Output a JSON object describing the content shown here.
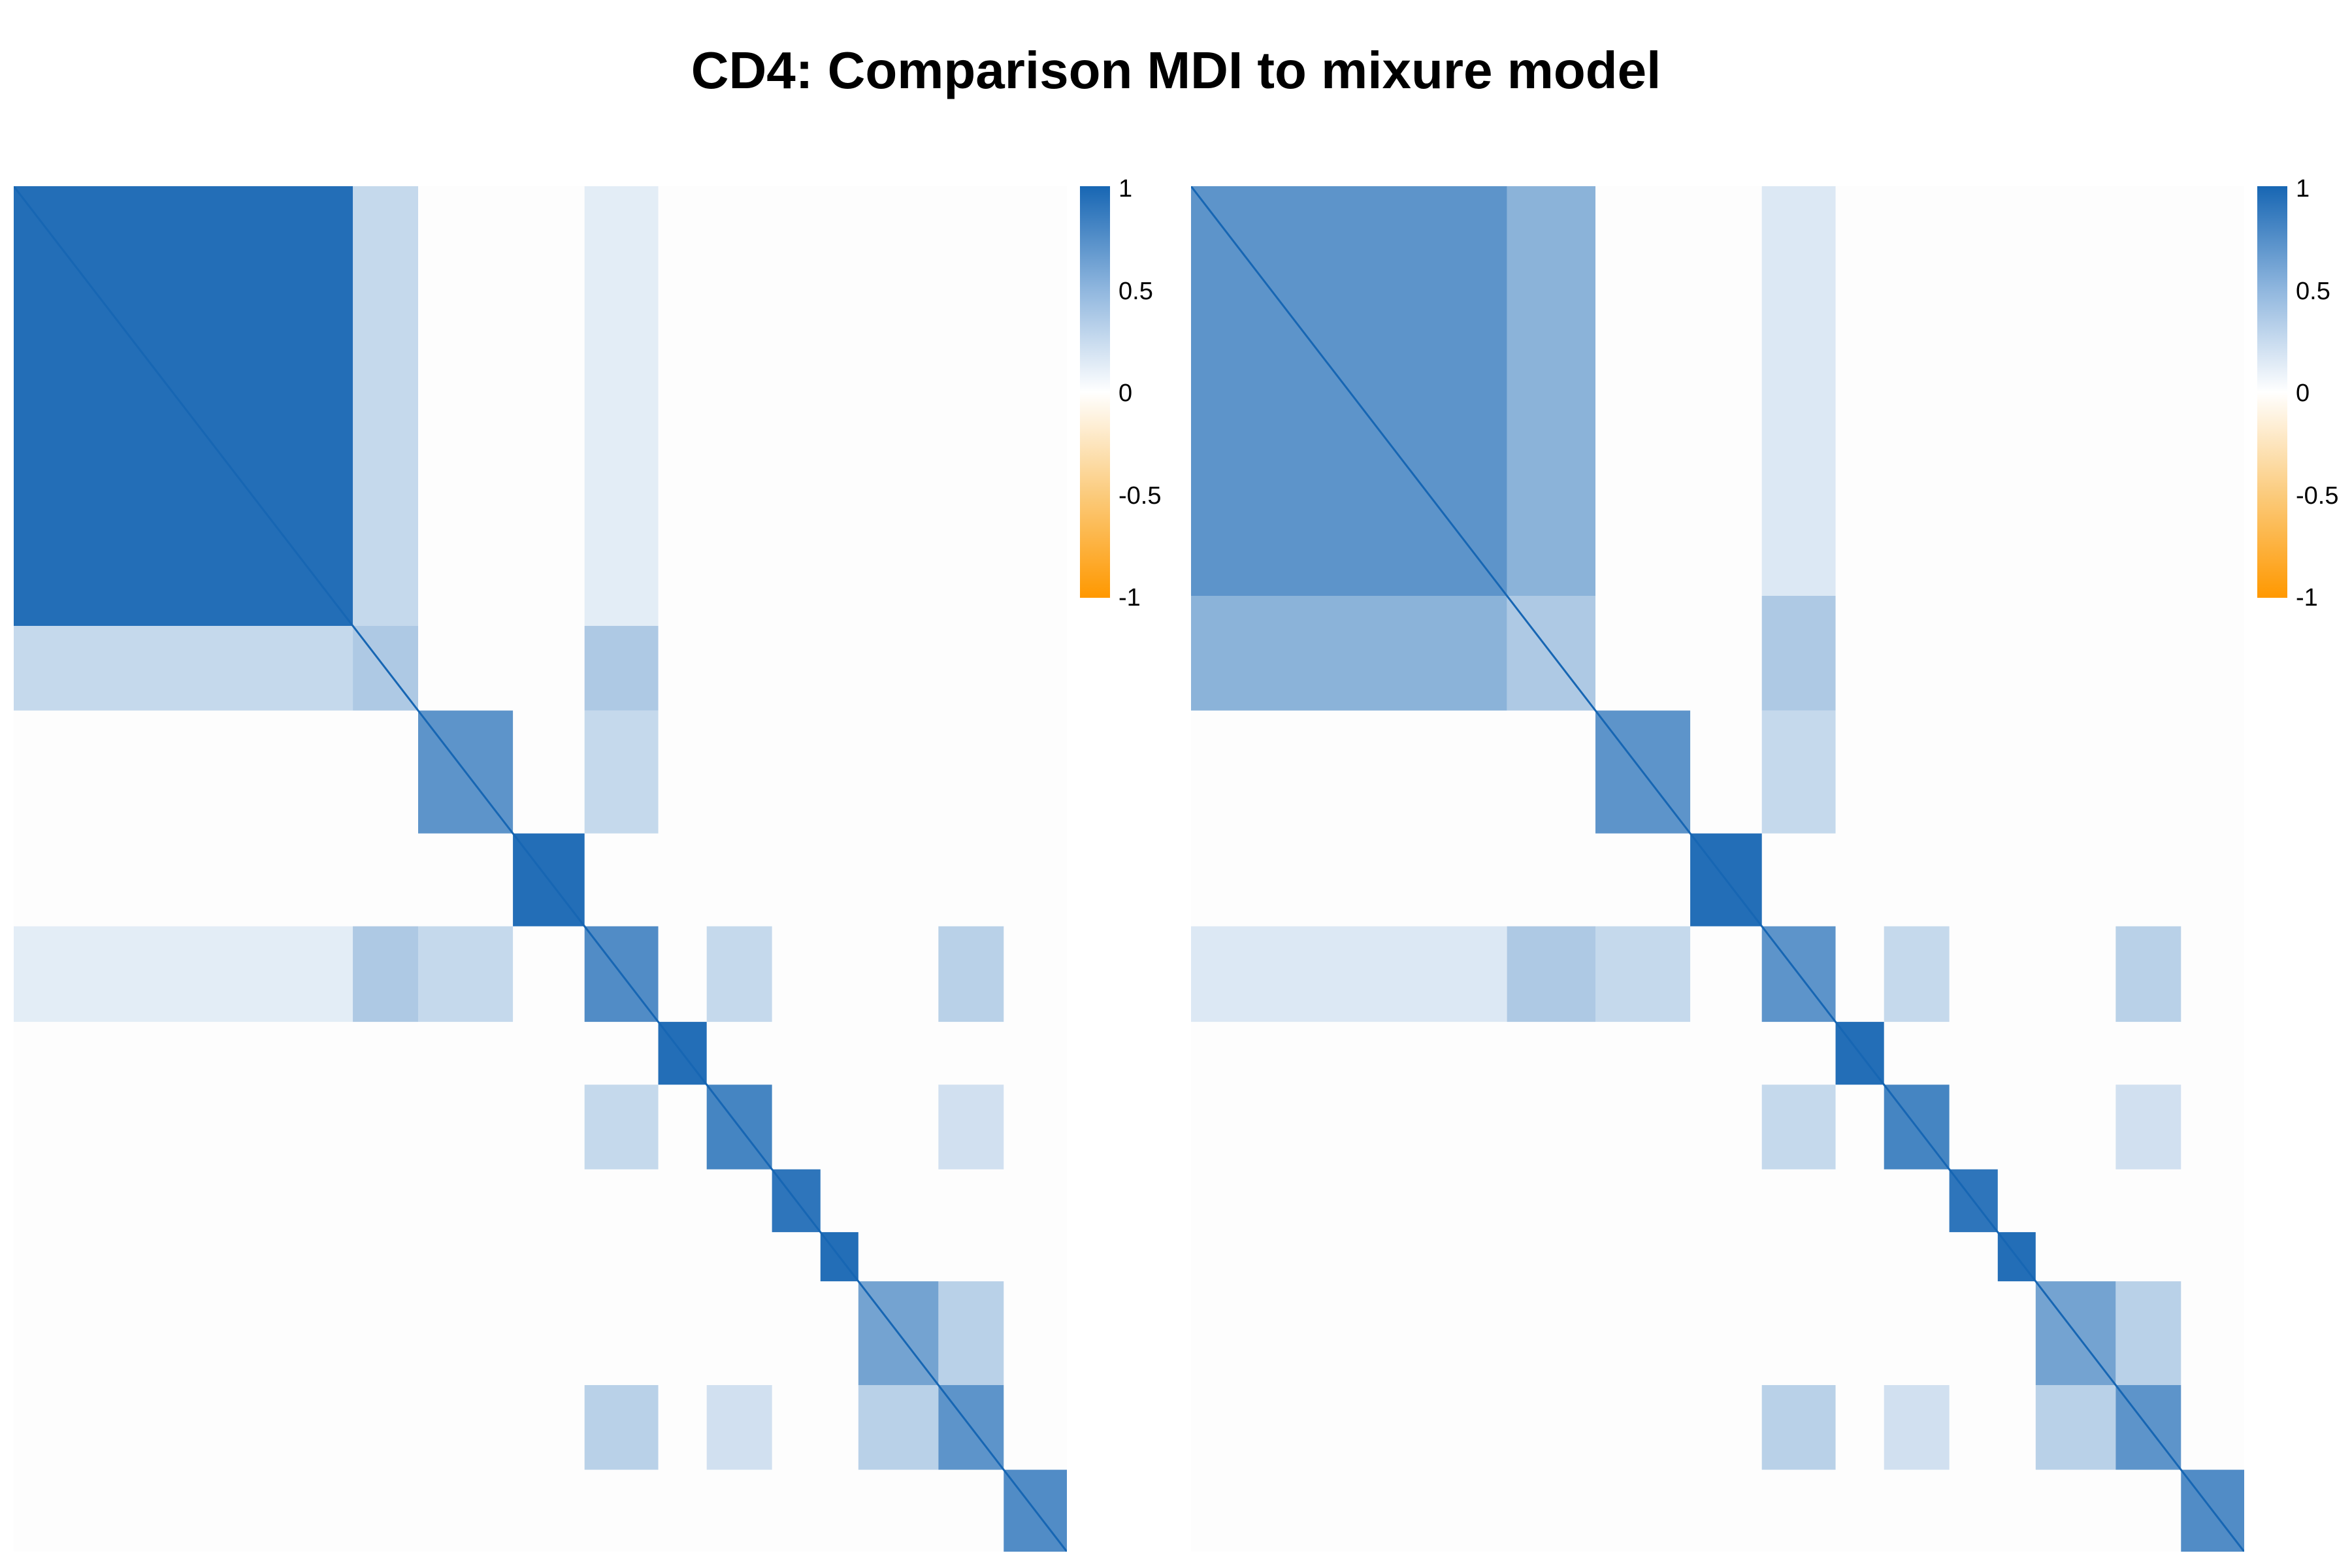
{
  "title": "CD4: Comparison MDI to mixure model",
  "colors": {
    "positive": "#1766b3",
    "zero": "#ffffff",
    "negative": "#ff9800"
  },
  "chart_data": [
    {
      "type": "heatmap",
      "title": "",
      "value_range": [
        -1,
        1
      ],
      "legend": {
        "position": "right",
        "ticks": [
          "1",
          "0.5",
          "0",
          "-0.5",
          "-1"
        ]
      },
      "matrix_size": 1000,
      "clusters": [
        {
          "start": 0,
          "end": 322,
          "within": 0.95
        },
        {
          "start": 322,
          "end": 384,
          "within": 0.35
        },
        {
          "start": 384,
          "end": 474,
          "within": 0.7
        },
        {
          "start": 474,
          "end": 542,
          "within": 0.95
        },
        {
          "start": 542,
          "end": 612,
          "within": 0.75
        },
        {
          "start": 612,
          "end": 658,
          "within": 0.95
        },
        {
          "start": 658,
          "end": 720,
          "within": 0.8
        },
        {
          "start": 720,
          "end": 766,
          "within": 0.9
        },
        {
          "start": 766,
          "end": 802,
          "within": 0.95
        },
        {
          "start": 802,
          "end": 878,
          "within": 0.6
        },
        {
          "start": 878,
          "end": 940,
          "within": 0.7
        },
        {
          "start": 940,
          "end": 1000,
          "within": 0.75
        }
      ],
      "off_diagonal": [
        {
          "rows": [
            0,
            322
          ],
          "cols": [
            322,
            384
          ],
          "value": 0.25
        },
        {
          "rows": [
            0,
            322
          ],
          "cols": [
            542,
            612
          ],
          "value": 0.12
        },
        {
          "rows": [
            322,
            384
          ],
          "cols": [
            542,
            612
          ],
          "value": 0.35
        },
        {
          "rows": [
            384,
            474
          ],
          "cols": [
            542,
            612
          ],
          "value": 0.25
        },
        {
          "rows": [
            542,
            612
          ],
          "cols": [
            658,
            720
          ],
          "value": 0.25
        },
        {
          "rows": [
            542,
            612
          ],
          "cols": [
            878,
            940
          ],
          "value": 0.3
        },
        {
          "rows": [
            658,
            720
          ],
          "cols": [
            878,
            940
          ],
          "value": 0.2
        },
        {
          "rows": [
            802,
            878
          ],
          "cols": [
            878,
            940
          ],
          "value": 0.3
        }
      ]
    },
    {
      "type": "heatmap",
      "title": "",
      "value_range": [
        -1,
        1
      ],
      "legend": {
        "position": "right",
        "ticks": [
          "1",
          "0.5",
          "0",
          "-0.5",
          "-1"
        ]
      },
      "matrix_size": 1000,
      "clusters": [
        {
          "start": 0,
          "end": 300,
          "within": 0.7
        },
        {
          "start": 300,
          "end": 384,
          "within": 0.35
        },
        {
          "start": 384,
          "end": 474,
          "within": 0.7
        },
        {
          "start": 474,
          "end": 542,
          "within": 0.95
        },
        {
          "start": 542,
          "end": 612,
          "within": 0.7
        },
        {
          "start": 612,
          "end": 658,
          "within": 0.95
        },
        {
          "start": 658,
          "end": 720,
          "within": 0.8
        },
        {
          "start": 720,
          "end": 766,
          "within": 0.9
        },
        {
          "start": 766,
          "end": 802,
          "within": 0.95
        },
        {
          "start": 802,
          "end": 878,
          "within": 0.6
        },
        {
          "start": 878,
          "end": 940,
          "within": 0.7
        },
        {
          "start": 940,
          "end": 1000,
          "within": 0.75
        }
      ],
      "off_diagonal": [
        {
          "rows": [
            0,
            300
          ],
          "cols": [
            300,
            384
          ],
          "value": 0.5
        },
        {
          "rows": [
            0,
            300
          ],
          "cols": [
            542,
            612
          ],
          "value": 0.15
        },
        {
          "rows": [
            300,
            384
          ],
          "cols": [
            542,
            612
          ],
          "value": 0.35
        },
        {
          "rows": [
            384,
            474
          ],
          "cols": [
            542,
            612
          ],
          "value": 0.25
        },
        {
          "rows": [
            542,
            612
          ],
          "cols": [
            658,
            720
          ],
          "value": 0.25
        },
        {
          "rows": [
            542,
            612
          ],
          "cols": [
            878,
            940
          ],
          "value": 0.3
        },
        {
          "rows": [
            658,
            720
          ],
          "cols": [
            878,
            940
          ],
          "value": 0.2
        },
        {
          "rows": [
            802,
            878
          ],
          "cols": [
            878,
            940
          ],
          "value": 0.3
        }
      ]
    }
  ]
}
